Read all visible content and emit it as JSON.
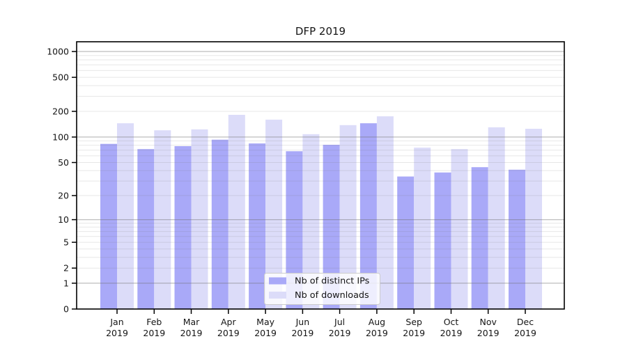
{
  "chart_data": {
    "type": "bar",
    "title": "DFP 2019",
    "categories": [
      "Jan",
      "Feb",
      "Mar",
      "Apr",
      "May",
      "Jun",
      "Jul",
      "Aug",
      "Sep",
      "Oct",
      "Nov",
      "Dec"
    ],
    "category_year": "2019",
    "series": [
      {
        "name": "Nb of distinct IPs",
        "color": "#a9a9f8",
        "values": [
          83,
          72,
          78,
          93,
          84,
          68,
          81,
          145,
          34,
          38,
          44,
          41
        ]
      },
      {
        "name": "Nb of downloads",
        "color": "#dcdcf9",
        "values": [
          145,
          120,
          123,
          182,
          160,
          108,
          138,
          175,
          75,
          72,
          130,
          125
        ]
      }
    ],
    "xlabel": "",
    "ylabel": "",
    "yaxis": {
      "scale": "symlog (log1p)",
      "ticks": [
        0,
        1,
        2,
        5,
        10,
        20,
        50,
        100,
        200,
        500,
        1000
      ],
      "ylim": [
        0,
        1300
      ],
      "major_gridlines": [
        1,
        10,
        100,
        1000
      ],
      "minor_gridlines": [
        2,
        3,
        4,
        5,
        6,
        7,
        8,
        9,
        20,
        30,
        40,
        50,
        60,
        70,
        80,
        90,
        200,
        300,
        400,
        500,
        600,
        700,
        800,
        900
      ]
    },
    "grid": "on",
    "legend_position": "lower center (inside plot)",
    "colors": {
      "major_grid": "rgba(110,110,110,0.45)",
      "minor_grid": "rgba(120,120,120,0.18)",
      "spine": "#000000",
      "legend_border": "#cccccc",
      "legend_bg": "#ffffff"
    }
  }
}
